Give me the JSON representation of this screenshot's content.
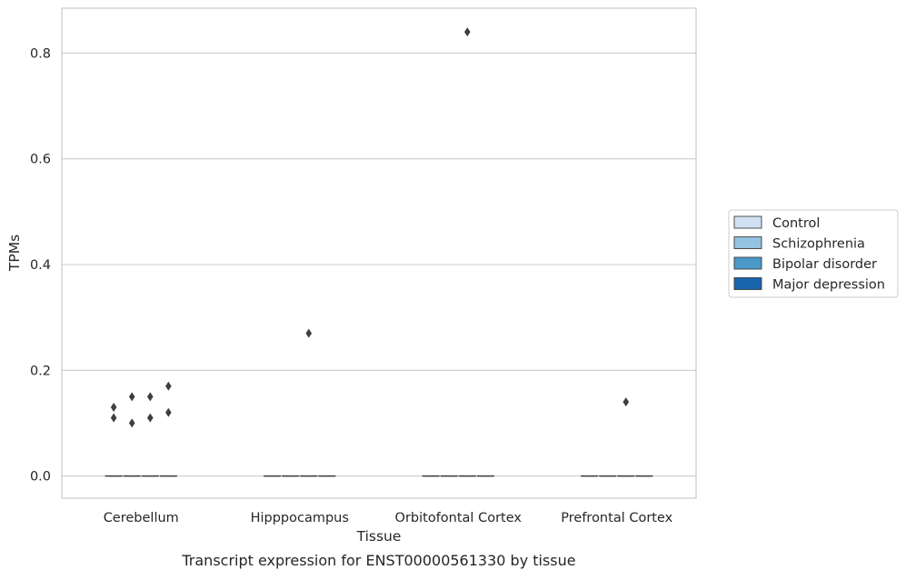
{
  "chart_data": {
    "type": "box",
    "caption": "Transcript expression for ENST00000561330 by tissue",
    "xlabel": "Tissue",
    "ylabel": "TPMs",
    "ylim": [
      -0.042,
      0.885
    ],
    "yticks": [
      0.0,
      0.2,
      0.4,
      0.6,
      0.8
    ],
    "ytick_labels": [
      "0.0",
      "0.2",
      "0.4",
      "0.6",
      "0.8"
    ],
    "categories": [
      "Cerebellum",
      "Hipppocampus",
      "Orbitofontal Cortex",
      "Prefrontal Cortex"
    ],
    "grid": "horizontal",
    "legend_position": "right",
    "series": [
      {
        "name": "Control",
        "color": "#cfe1f2",
        "boxes": [
          {
            "category": "Cerebellum",
            "q1": 0,
            "median": 0,
            "q3": 0,
            "whisker_low": 0,
            "whisker_high": 0,
            "outliers": [
              0.11,
              0.13
            ]
          },
          {
            "category": "Hipppocampus",
            "q1": 0,
            "median": 0,
            "q3": 0,
            "whisker_low": 0,
            "whisker_high": 0,
            "outliers": []
          },
          {
            "category": "Orbitofontal Cortex",
            "q1": 0,
            "median": 0,
            "q3": 0,
            "whisker_low": 0,
            "whisker_high": 0,
            "outliers": []
          },
          {
            "category": "Prefrontal Cortex",
            "q1": 0,
            "median": 0,
            "q3": 0,
            "whisker_low": 0,
            "whisker_high": 0,
            "outliers": []
          }
        ]
      },
      {
        "name": "Schizophrenia",
        "color": "#93c3df",
        "boxes": [
          {
            "category": "Cerebellum",
            "q1": 0,
            "median": 0,
            "q3": 0,
            "whisker_low": 0,
            "whisker_high": 0,
            "outliers": [
              0.1,
              0.15
            ]
          },
          {
            "category": "Hipppocampus",
            "q1": 0,
            "median": 0,
            "q3": 0,
            "whisker_low": 0,
            "whisker_high": 0,
            "outliers": []
          },
          {
            "category": "Orbitofontal Cortex",
            "q1": 0,
            "median": 0,
            "q3": 0,
            "whisker_low": 0,
            "whisker_high": 0,
            "outliers": []
          },
          {
            "category": "Prefrontal Cortex",
            "q1": 0,
            "median": 0,
            "q3": 0,
            "whisker_low": 0,
            "whisker_high": 0,
            "outliers": []
          }
        ]
      },
      {
        "name": "Bipolar disorder",
        "color": "#4b98c9",
        "boxes": [
          {
            "category": "Cerebellum",
            "q1": 0,
            "median": 0,
            "q3": 0,
            "whisker_low": 0,
            "whisker_high": 0,
            "outliers": [
              0.11,
              0.15
            ]
          },
          {
            "category": "Hipppocampus",
            "q1": 0,
            "median": 0,
            "q3": 0,
            "whisker_low": 0,
            "whisker_high": 0,
            "outliers": [
              0.27
            ]
          },
          {
            "category": "Orbitofontal Cortex",
            "q1": 0,
            "median": 0,
            "q3": 0,
            "whisker_low": 0,
            "whisker_high": 0,
            "outliers": [
              0.84
            ]
          },
          {
            "category": "Prefrontal Cortex",
            "q1": 0,
            "median": 0,
            "q3": 0,
            "whisker_low": 0,
            "whisker_high": 0,
            "outliers": [
              0.14
            ]
          }
        ]
      },
      {
        "name": "Major depression",
        "color": "#1764ab",
        "boxes": [
          {
            "category": "Cerebellum",
            "q1": 0,
            "median": 0,
            "q3": 0,
            "whisker_low": 0,
            "whisker_high": 0,
            "outliers": [
              0.12,
              0.17
            ]
          },
          {
            "category": "Hipppocampus",
            "q1": 0,
            "median": 0,
            "q3": 0,
            "whisker_low": 0,
            "whisker_high": 0,
            "outliers": []
          },
          {
            "category": "Orbitofontal Cortex",
            "q1": 0,
            "median": 0,
            "q3": 0,
            "whisker_low": 0,
            "whisker_high": 0,
            "outliers": []
          },
          {
            "category": "Prefrontal Cortex",
            "q1": 0,
            "median": 0,
            "q3": 0,
            "whisker_low": 0,
            "whisker_high": 0,
            "outliers": []
          }
        ]
      }
    ]
  }
}
